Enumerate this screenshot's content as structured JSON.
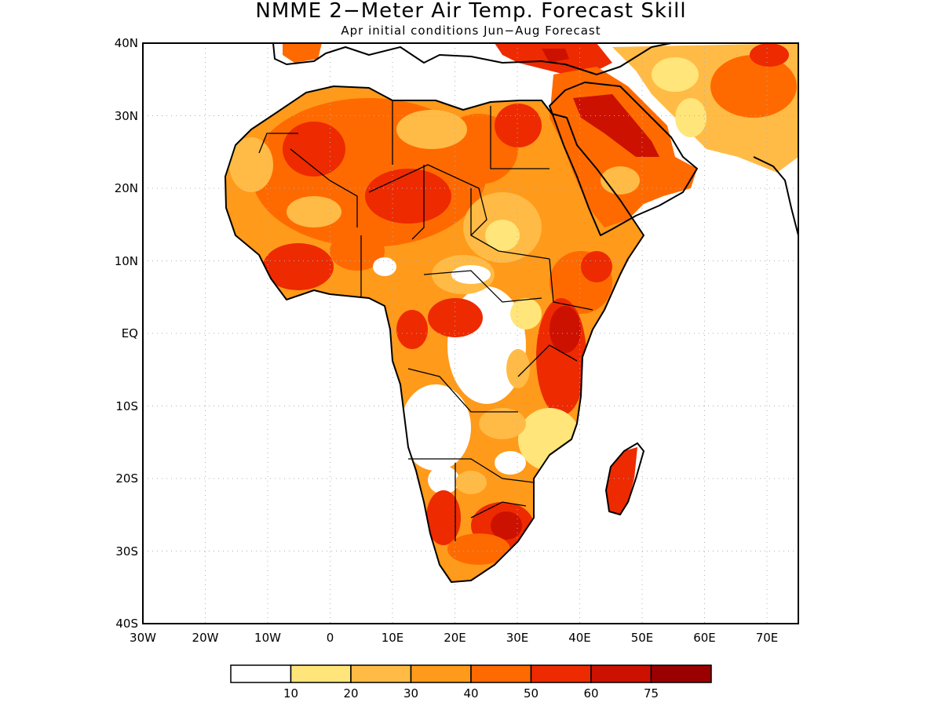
{
  "title": "NMME 2−Meter Air Temp. Forecast Skill",
  "subtitle": "Apr initial conditions  Jun−Aug Forecast",
  "map": {
    "lon_range": [
      -30,
      75
    ],
    "lat_range": [
      -40,
      40
    ],
    "lat_ticks": [
      {
        "value": 40,
        "label": "40N"
      },
      {
        "value": 30,
        "label": "30N"
      },
      {
        "value": 20,
        "label": "20N"
      },
      {
        "value": 10,
        "label": "10N"
      },
      {
        "value": 0,
        "label": "EQ"
      },
      {
        "value": -10,
        "label": "10S"
      },
      {
        "value": -20,
        "label": "20S"
      },
      {
        "value": -30,
        "label": "30S"
      },
      {
        "value": -40,
        "label": "40S"
      }
    ],
    "lon_ticks": [
      {
        "value": -30,
        "label": "30W"
      },
      {
        "value": -20,
        "label": "20W"
      },
      {
        "value": -10,
        "label": "10W"
      },
      {
        "value": 0,
        "label": "0"
      },
      {
        "value": 10,
        "label": "10E"
      },
      {
        "value": 20,
        "label": "20E"
      },
      {
        "value": 30,
        "label": "30E"
      },
      {
        "value": 40,
        "label": "40E"
      },
      {
        "value": 50,
        "label": "50E"
      },
      {
        "value": 60,
        "label": "60E"
      },
      {
        "value": 70,
        "label": "70E"
      }
    ],
    "gridlines": true
  },
  "colorbar": {
    "boundary_labels": [
      "10",
      "20",
      "30",
      "40",
      "50",
      "60",
      "75"
    ],
    "colors": [
      "#ffffff",
      "#ffe57a",
      "#ffbb45",
      "#ff9a1a",
      "#ff6a00",
      "#ee2a00",
      "#cc1100",
      "#9b0000"
    ]
  }
}
